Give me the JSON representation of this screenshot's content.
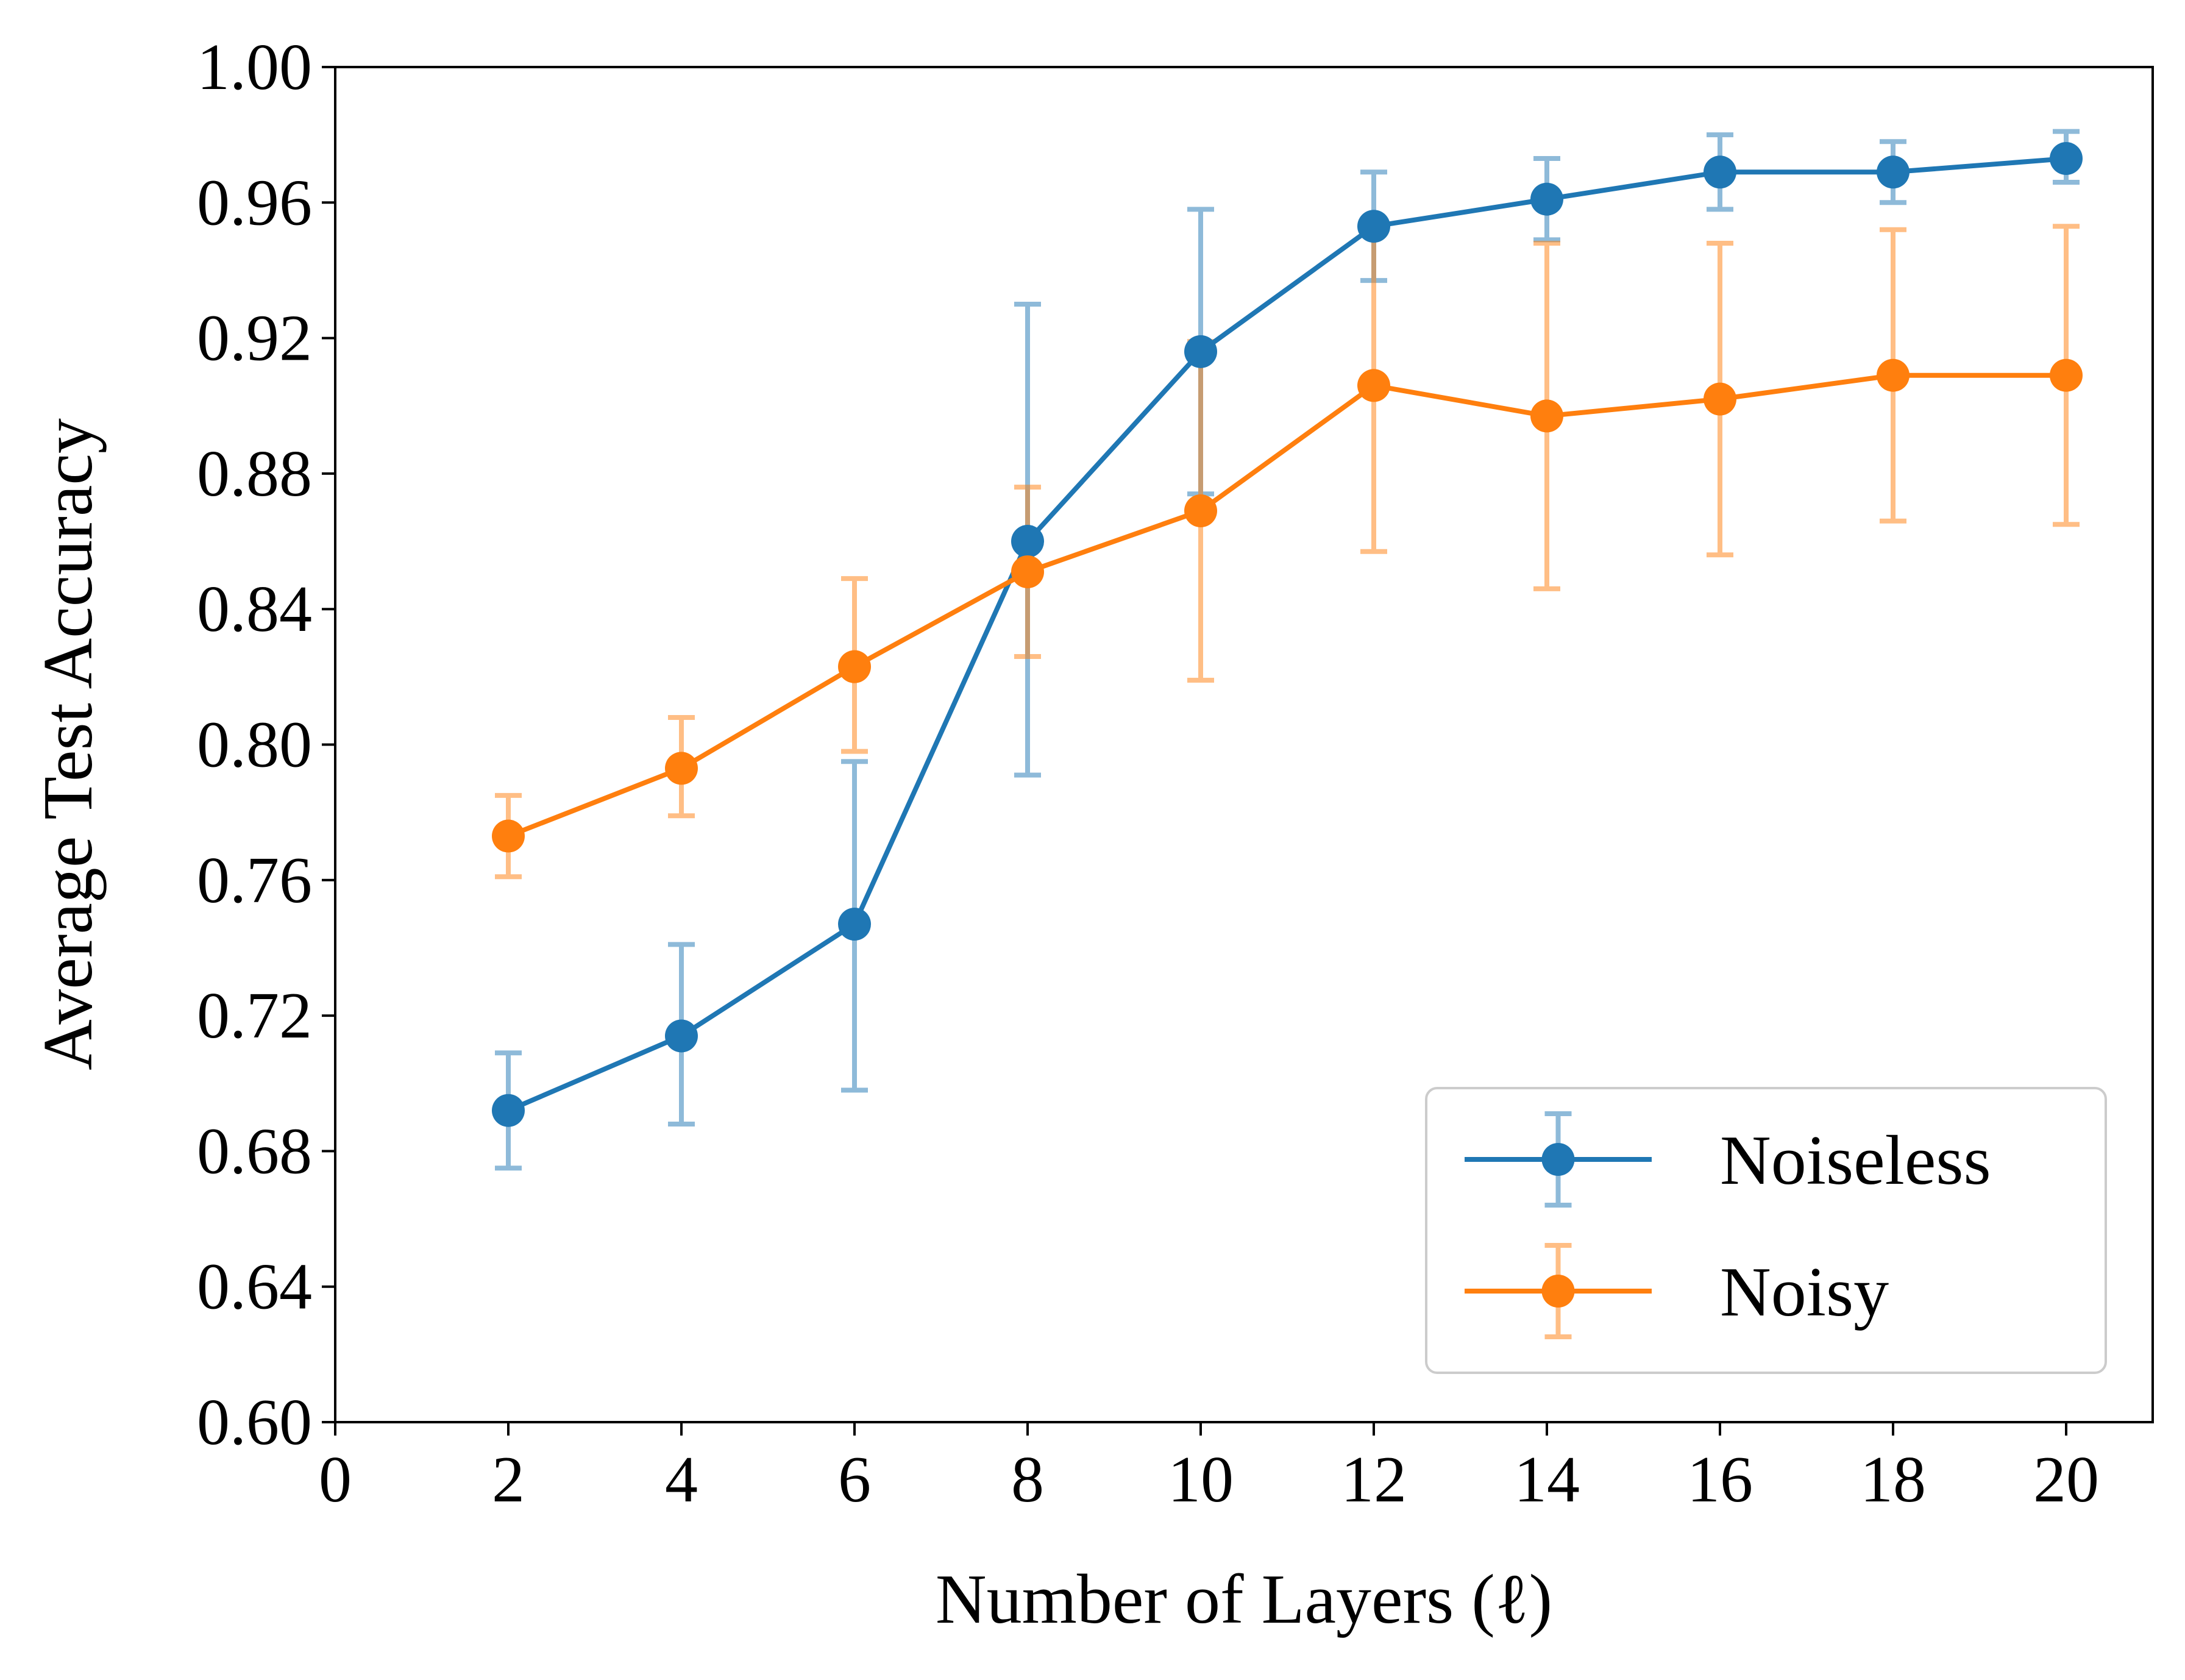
{
  "chart_data": {
    "type": "line",
    "xlabel": "Number of Layers (ℓ)",
    "ylabel": "Average Test Accuracy",
    "xlim": [
      0,
      21
    ],
    "ylim": [
      0.6,
      1.0
    ],
    "xticks": [
      "0",
      "2",
      "4",
      "6",
      "8",
      "10",
      "12",
      "14",
      "16",
      "18",
      "20"
    ],
    "yticks": [
      "0.60",
      "0.64",
      "0.68",
      "0.72",
      "0.76",
      "0.80",
      "0.84",
      "0.88",
      "0.92",
      "0.96",
      "1.00"
    ],
    "grid": false,
    "legend_position": "lower-right",
    "x": [
      2,
      4,
      6,
      8,
      10,
      12,
      14,
      16,
      18,
      20
    ],
    "series": [
      {
        "name": "Noiseless",
        "color": "#1f77b4",
        "values": [
          0.692,
          0.714,
          0.747,
          0.86,
          0.916,
          0.953,
          0.961,
          0.969,
          0.969,
          0.973
        ],
        "err_low": [
          0.675,
          0.688,
          0.698,
          0.791,
          0.874,
          0.937,
          0.949,
          0.958,
          0.96,
          0.966
        ],
        "err_high": [
          0.709,
          0.741,
          0.795,
          0.93,
          0.958,
          0.969,
          0.973,
          0.98,
          0.978,
          0.981
        ]
      },
      {
        "name": "Noisy",
        "color": "#ff7f0e",
        "values": [
          0.773,
          0.793,
          0.823,
          0.851,
          0.869,
          0.906,
          0.897,
          0.902,
          0.909,
          0.909
        ],
        "err_low": [
          0.761,
          0.779,
          0.798,
          0.826,
          0.819,
          0.857,
          0.846,
          0.856,
          0.866,
          0.865
        ],
        "err_high": [
          0.785,
          0.808,
          0.849,
          0.876,
          0.919,
          0.955,
          0.948,
          0.948,
          0.952,
          0.953
        ]
      }
    ]
  }
}
